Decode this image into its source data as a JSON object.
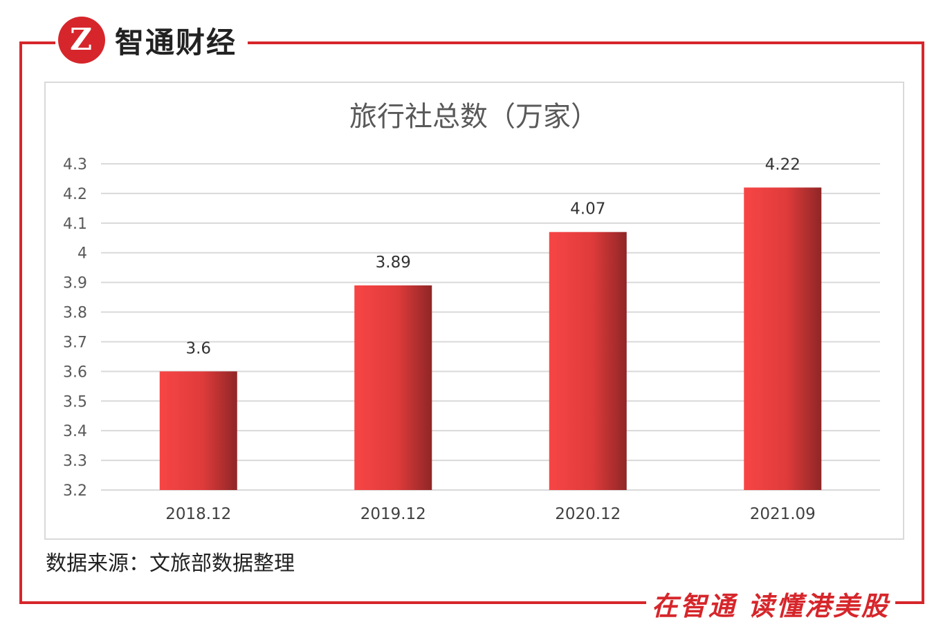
{
  "brand": {
    "logo_letter": "Z",
    "name": "智通财经"
  },
  "slogan": "在智通 读懂港美股",
  "source_text": "数据来源：文旅部数据整理",
  "colors": {
    "accent": "#d6262b",
    "bar_light": "#f74545",
    "bar_dark": "#8f2626",
    "grid": "#d9d9d9"
  },
  "chart_data": {
    "type": "bar",
    "title": "旅行社总数（万家）",
    "categories": [
      "2018.12",
      "2019.12",
      "2020.12",
      "2021.09"
    ],
    "values": [
      3.6,
      3.89,
      4.07,
      4.22
    ],
    "value_labels": [
      "3.6",
      "3.89",
      "4.07",
      "4.22"
    ],
    "ylim": [
      3.2,
      4.3
    ],
    "yticks": [
      "3.2",
      "3.3",
      "3.4",
      "3.5",
      "3.6",
      "3.7",
      "3.8",
      "3.9",
      "4",
      "4.1",
      "4.2",
      "4.3"
    ],
    "grid": true,
    "legend": "none"
  }
}
